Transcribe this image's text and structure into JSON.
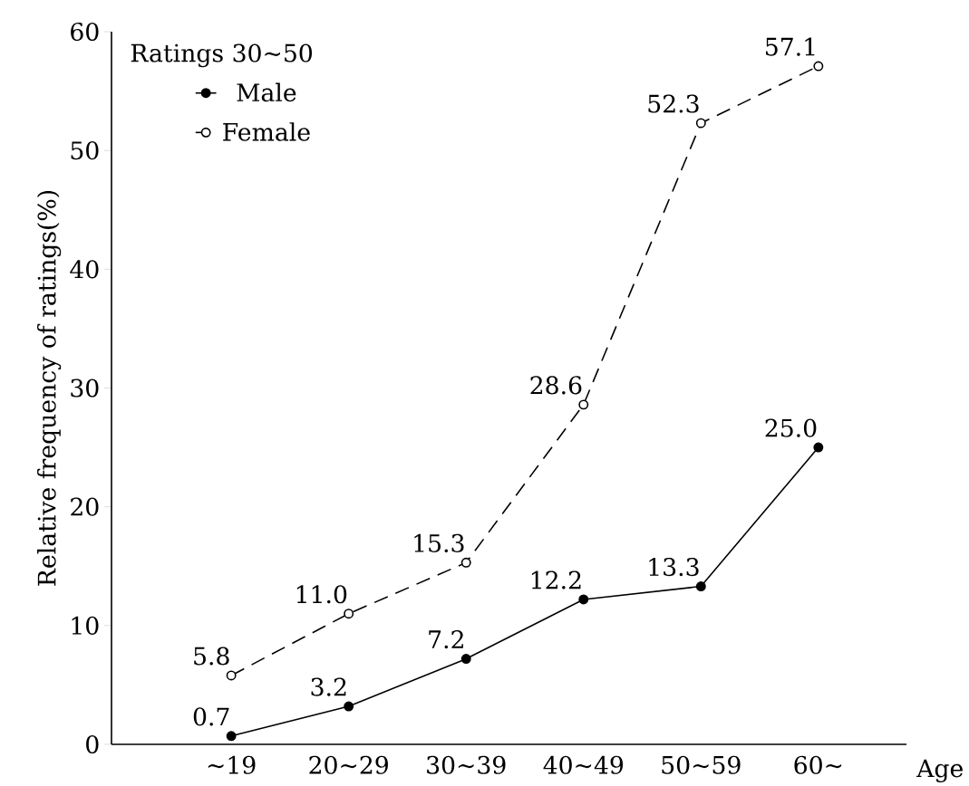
{
  "chart_data": {
    "type": "line",
    "legend_title": "Ratings 30∼50",
    "ylabel": "Relative frequency of ratings(%)",
    "xlabel": "Age",
    "categories": [
      "∼19",
      "20∼29",
      "30∼39",
      "40∼49",
      "50∼59",
      "60∼"
    ],
    "series": [
      {
        "name": "Male",
        "color": "#000000",
        "line_style": "solid",
        "values": [
          0.7,
          3.2,
          7.2,
          12.2,
          13.3,
          25.0
        ],
        "value_labels": [
          "0.7",
          "3.2",
          "7.2",
          "12.2",
          "13.3",
          "25.0"
        ]
      },
      {
        "name": "Female",
        "color": "#000000",
        "line_style": "dashed",
        "values": [
          5.8,
          11.0,
          15.3,
          28.6,
          52.3,
          57.1
        ],
        "value_labels": [
          "5.8",
          "11.0",
          "15.3",
          "28.6",
          "52.3",
          "57.1"
        ]
      }
    ],
    "ylim": [
      0,
      60
    ],
    "yticks": [
      0,
      10,
      20,
      30,
      40,
      50,
      60
    ],
    "legend": "top left",
    "marker": "circle",
    "grid": false
  }
}
